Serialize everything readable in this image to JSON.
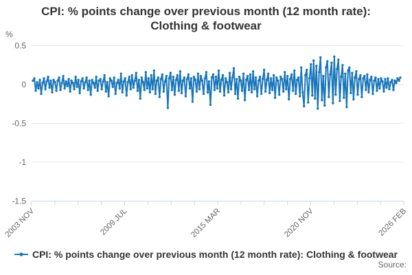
{
  "title": {
    "line1": "CPI: % points change over previous month (12 month rate):",
    "line2": "Clothing & footwear"
  },
  "axes": {
    "unit_label": "%",
    "y_tick_labels": [
      "0.5",
      "0",
      "-0.5",
      "-1",
      "-1.5"
    ],
    "x_tick_labels": [
      "2003 NOV",
      "2009 JUL",
      "2015 MAR",
      "2020 NOV",
      "2026 FEB"
    ]
  },
  "legend": {
    "series_label": "CPI: % points change over previous month (12 month rate): Clothing & footwear"
  },
  "footer": {
    "source_label": "Source:"
  },
  "colors": {
    "series_line": "#1776ba",
    "gridline": "#e6e6e6",
    "axis_line": "#ccd6eb",
    "title_text": "#333333",
    "tick_text": "#666666"
  },
  "chart_data": {
    "type": "line",
    "title": "CPI: % points change over previous month (12 month rate): Clothing & footwear",
    "xlabel": "",
    "ylabel": "%",
    "x_start": "2003 NOV",
    "x_end": "2026 FEB",
    "x_tick_labels": [
      "2003 NOV",
      "2009 JUL",
      "2015 MAR",
      "2020 NOV",
      "2026 FEB"
    ],
    "minor_tick_divisions_per_label": 4,
    "y_ticks": [
      0.5,
      0,
      -0.5,
      -1,
      -1.5
    ],
    "ylim": [
      -1.5,
      0.5
    ],
    "grid": "horizontal",
    "legend_position": "bottom",
    "markers": true,
    "series": [
      {
        "name": "CPI: % points change over previous month (12 month rate): Clothing & footwear",
        "color": "#1776ba",
        "frequency": "monthly",
        "values": [
          0.05,
          0.08,
          -0.08,
          0.03,
          -0.05,
          0.06,
          -0.12,
          0.02,
          0.08,
          -0.06,
          0.04,
          0.1,
          -0.04,
          0.05,
          -0.1,
          0.06,
          0.03,
          -0.08,
          0.05,
          0.09,
          -0.07,
          0.02,
          0.11,
          -0.05,
          0.04,
          -0.02,
          0.07,
          -0.09,
          0.05,
          0.02,
          -0.06,
          0.1,
          -0.03,
          0.06,
          -0.11,
          0.04,
          0.08,
          -0.05,
          0.03,
          0.09,
          -0.07,
          0.05,
          -0.13,
          0.06,
          0.02,
          -0.04,
          0.1,
          -0.08,
          0.05,
          0.07,
          -0.06,
          0.04,
          0.12,
          -0.09,
          0.03,
          -0.15,
          0.08,
          0.05,
          -0.03,
          0.09,
          -0.12,
          0.02,
          0.06,
          -0.05,
          0.14,
          -0.1,
          0.04,
          0.08,
          -0.14,
          0.03,
          0.1,
          -0.06,
          0.12,
          -0.04,
          0.05,
          0.15,
          -0.08,
          0.06,
          -0.18,
          0.09,
          0.03,
          -0.07,
          0.16,
          -0.05,
          0.08,
          -0.1,
          0.12,
          -0.06,
          0.18,
          -0.12,
          0.05,
          0.09,
          -0.16,
          0.07,
          0.13,
          -0.09,
          0.04,
          0.11,
          -0.3,
          0.08,
          0.15,
          -0.07,
          0.1,
          -0.13,
          0.06,
          0.12,
          -0.08,
          0.17,
          -0.11,
          0.05,
          0.09,
          -0.15,
          0.07,
          0.13,
          -0.05,
          0.08,
          -0.22,
          0.1,
          0.06,
          -0.09,
          0.14,
          -0.06,
          0.11,
          0.05,
          -0.12,
          0.08,
          0.16,
          -0.1,
          0.04,
          -0.26,
          0.09,
          0.13,
          -0.07,
          0.1,
          -0.05,
          0.18,
          -0.09,
          0.06,
          0.12,
          -0.14,
          0.08,
          0.03,
          -0.1,
          0.15,
          -0.06,
          0.09,
          0.21,
          -0.12,
          0.07,
          -0.18,
          0.1,
          0.05,
          -0.08,
          0.14,
          -0.2,
          0.06,
          0.11,
          -0.07,
          0.13,
          -0.1,
          0.17,
          -0.06,
          0.09,
          -0.15,
          0.05,
          0.1,
          -0.12,
          0.07,
          0.19,
          -0.09,
          0.06,
          0.14,
          -0.11,
          0.08,
          -0.07,
          0.12,
          -0.17,
          0.09,
          0.05,
          -0.13,
          0.1,
          0.07,
          -0.09,
          0.16,
          -0.06,
          0.11,
          -0.19,
          0.07,
          0.13,
          -0.08,
          0.18,
          -0.12,
          0.06,
          0.09,
          -0.15,
          0.22,
          -0.1,
          -0.28,
          0.12,
          0.19,
          -0.23,
          0.08,
          0.26,
          -0.14,
          0.31,
          -0.18,
          0.24,
          -0.31,
          0.16,
          0.35,
          -0.2,
          0.11,
          -0.27,
          0.22,
          0.3,
          -0.16,
          0.13,
          0.28,
          -0.24,
          0.36,
          -0.13,
          0.2,
          0.32,
          -0.21,
          0.1,
          0.25,
          -0.17,
          0.14,
          -0.29,
          0.18,
          0.22,
          -0.11,
          0.15,
          -0.19,
          0.09,
          0.17,
          -0.13,
          0.07,
          0.12,
          -0.16,
          0.08,
          0.11,
          -0.07,
          0.13,
          -0.1,
          0.06,
          0.1,
          -0.12,
          0.05,
          0.09,
          -0.08,
          0.07,
          -0.05,
          0.08,
          0.04,
          -0.09,
          0.07,
          -0.04,
          0.08,
          -0.06,
          0.03,
          0.06,
          -0.07,
          0.05,
          0.02,
          0.08,
          0.05,
          0.09
        ]
      }
    ]
  }
}
